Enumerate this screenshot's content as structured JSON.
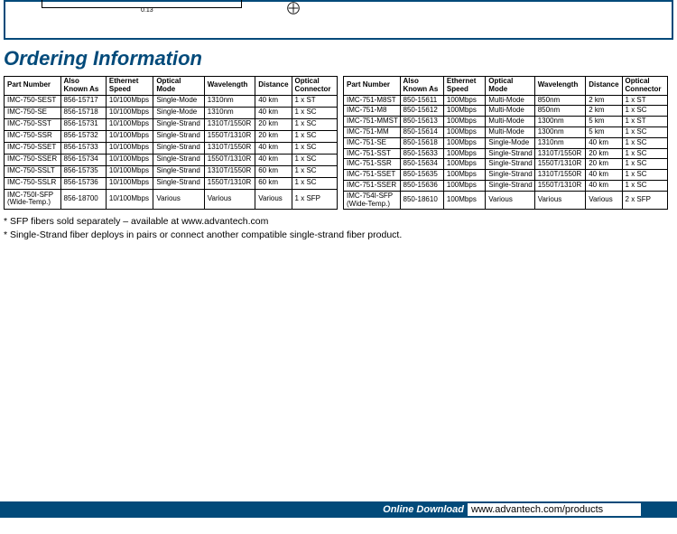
{
  "diagram": {
    "dim_small": "0.13",
    "symbol_hint": "⌀"
  },
  "heading": "Ordering Information",
  "table_left": {
    "columns": [
      "Part Number",
      "Also\nKnown As",
      "Ethernet\nSpeed",
      "Optical\nMode",
      "Wavelength",
      "Distance",
      "Optical\nConnector"
    ],
    "col_widths": [
      "62px",
      "50px",
      "52px",
      "56px",
      "56px",
      "40px",
      "50px"
    ],
    "rows": [
      [
        "IMC-750-SEST",
        "856-15717",
        "10/100Mbps",
        "Single-Mode",
        "1310nm",
        "40 km",
        "1 x ST"
      ],
      [
        "IMC-750-SE",
        "856-15718",
        "10/100Mbps",
        "Single-Mode",
        "1310nm",
        "40 km",
        "1 x SC"
      ],
      [
        "IMC-750-SST",
        "856-15731",
        "10/100Mbps",
        "Single-Strand",
        "1310T/1550R",
        "20 km",
        "1 x SC"
      ],
      [
        "IMC-750-SSR",
        "856-15732",
        "10/100Mbps",
        "Single-Strand",
        "1550T/1310R",
        "20 km",
        "1 x SC"
      ],
      [
        "IMC-750-SSET",
        "856-15733",
        "10/100Mbps",
        "Single-Strand",
        "1310T/1550R",
        "40 km",
        "1 x SC"
      ],
      [
        "IMC-750-SSER",
        "856-15734",
        "10/100Mbps",
        "Single-Strand",
        "1550T/1310R",
        "40 km",
        "1 x SC"
      ],
      [
        "IMC-750-SSLT",
        "856-15735",
        "10/100Mbps",
        "Single-Strand",
        "1310T/1550R",
        "60 km",
        "1 x SC"
      ],
      [
        "IMC-750-SSLR",
        "856-15736",
        "10/100Mbps",
        "Single-Strand",
        "1550T/1310R",
        "60 km",
        "1 x SC"
      ],
      [
        "IMC-750I-SFP\n(Wide-Temp.)",
        "856-18700",
        "10/100Mbps",
        "Various",
        "Various",
        "Various",
        "1 x SFP"
      ]
    ]
  },
  "table_right": {
    "columns": [
      "Part Number",
      "Also\nKnown As",
      "Ethernet\nSpeed",
      "Optical\nMode",
      "Wavelength",
      "Distance",
      "Optical\nConnector"
    ],
    "col_widths": [
      "62px",
      "48px",
      "46px",
      "54px",
      "56px",
      "40px",
      "50px"
    ],
    "rows": [
      [
        "IMC-751-M8ST",
        "850-15611",
        "100Mbps",
        "Multi-Mode",
        "850nm",
        "2 km",
        "1 x ST"
      ],
      [
        "IMC-751-M8",
        "850-15612",
        "100Mbps",
        "Multi-Mode",
        "850nm",
        "2 km",
        "1 x SC"
      ],
      [
        "IMC-751-MMST",
        "850-15613",
        "100Mbps",
        "Multi-Mode",
        "1300nm",
        "5 km",
        "1 x ST"
      ],
      [
        "IMC-751-MM",
        "850-15614",
        "100Mbps",
        "Multi-Mode",
        "1300nm",
        "5 km",
        "1 x SC"
      ],
      [
        "IMC-751-SE",
        "850-15618",
        "100Mbps",
        "Single-Mode",
        "1310nm",
        "40 km",
        "1 x SC"
      ],
      [
        "IMC-751-SST",
        "850-15633",
        "100Mbps",
        "Single-Strand",
        "1310T/1550R",
        "20 km",
        "1 x SC"
      ],
      [
        "IMC-751-SSR",
        "850-15634",
        "100Mbps",
        "Single-Strand",
        "1550T/1310R",
        "20 km",
        "1 x SC"
      ],
      [
        "IMC-751-SSET",
        "850-15635",
        "100Mbps",
        "Single-Strand",
        "1310T/1550R",
        "40 km",
        "1 x SC"
      ],
      [
        "IMC-751-SSER",
        "850-15636",
        "100Mbps",
        "Single-Strand",
        "1550T/1310R",
        "40 km",
        "1 x SC"
      ],
      [
        "IMC-754I-SFP\n(Wide-Temp.)",
        "850-18610",
        "100Mbps",
        "Various",
        "Various",
        "Various",
        "2 x SFP"
      ]
    ]
  },
  "notes": [
    "* SFP fibers sold separately – available at www.advantech.com",
    "* Single-Strand fiber deploys in pairs or connect another compatible single-strand fiber product."
  ],
  "footer": {
    "label": "Online Download",
    "url": "www.advantech.com/products"
  },
  "colors": {
    "brand": "#024a7a",
    "border": "#000000",
    "bg": "#ffffff"
  }
}
